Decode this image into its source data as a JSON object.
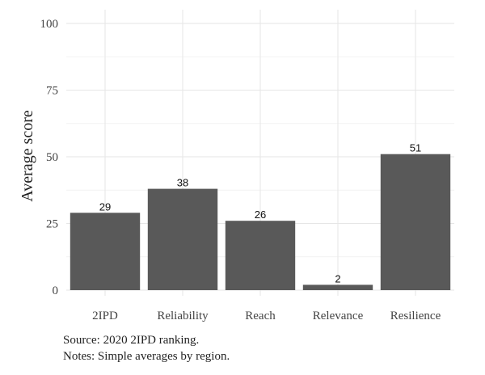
{
  "chart_data": {
    "type": "bar",
    "categories": [
      "2IPD",
      "Reliability",
      "Reach",
      "Relevance",
      "Resilience"
    ],
    "values": [
      29,
      38,
      26,
      2,
      51
    ],
    "value_labels": [
      "29",
      "38",
      "26",
      "2",
      "51"
    ],
    "ylabel": "Average score",
    "xlabel": "",
    "ylim": [
      0,
      100
    ],
    "yticks": [
      0,
      25,
      50,
      75,
      100
    ],
    "grid": true,
    "bar_color": "#595959"
  },
  "caption": {
    "source": "Source: 2020 2IPD ranking.",
    "notes": "Notes: Simple averages by region."
  }
}
